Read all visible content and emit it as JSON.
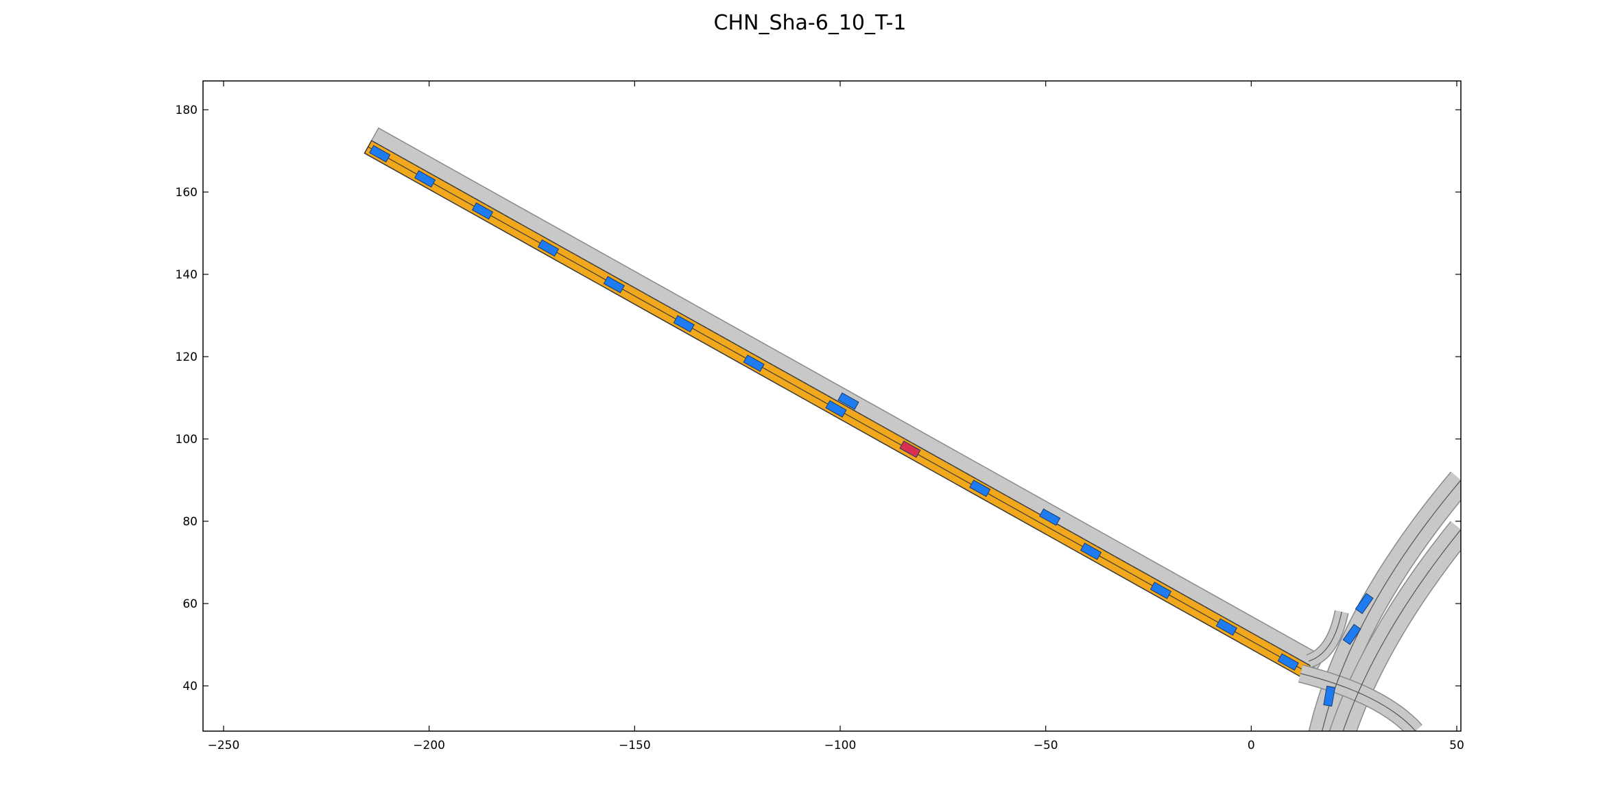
{
  "chart_data": {
    "type": "scatter",
    "title": "CHN_Sha-6_10_T-1",
    "xlabel": "",
    "ylabel": "",
    "xlim": [
      -255,
      51
    ],
    "ylim": [
      29,
      187
    ],
    "x_ticks": [
      -250,
      -200,
      -150,
      -100,
      -50,
      0,
      50
    ],
    "y_ticks": [
      40,
      60,
      80,
      100,
      120,
      140,
      160,
      180
    ],
    "grid": false,
    "legend": "none",
    "colors": {
      "road": "#c8c8c8",
      "road_edge": "#8a8a8a",
      "highlighted_lane": "#f2a81d",
      "other_vehicle": "#1e7bf0",
      "ego_vehicle": "#d9304f"
    },
    "main_road": {
      "start": [
        -214,
        172.5
      ],
      "end": [
        16,
        44
      ],
      "lanes": 2,
      "highlighted_lane": "right"
    },
    "other_vehicles": [
      [
        -212,
        169.3
      ],
      [
        -201,
        163.2
      ],
      [
        -187,
        155.4
      ],
      [
        -171,
        146.4
      ],
      [
        -155,
        137.5
      ],
      [
        -138,
        128.0
      ],
      [
        -121,
        118.4
      ],
      [
        -101,
        107.3
      ],
      [
        -98,
        109.2
      ],
      [
        -66,
        88.0
      ],
      [
        -49,
        81.0
      ],
      [
        -39,
        72.7
      ],
      [
        -22,
        63.2
      ],
      [
        -6,
        54.3
      ],
      [
        9,
        45.8
      ],
      [
        19,
        37.5
      ],
      [
        24.5,
        52.5
      ],
      [
        27.5,
        60.0
      ]
    ],
    "ego_vehicle": [
      -83,
      97.5
    ]
  }
}
